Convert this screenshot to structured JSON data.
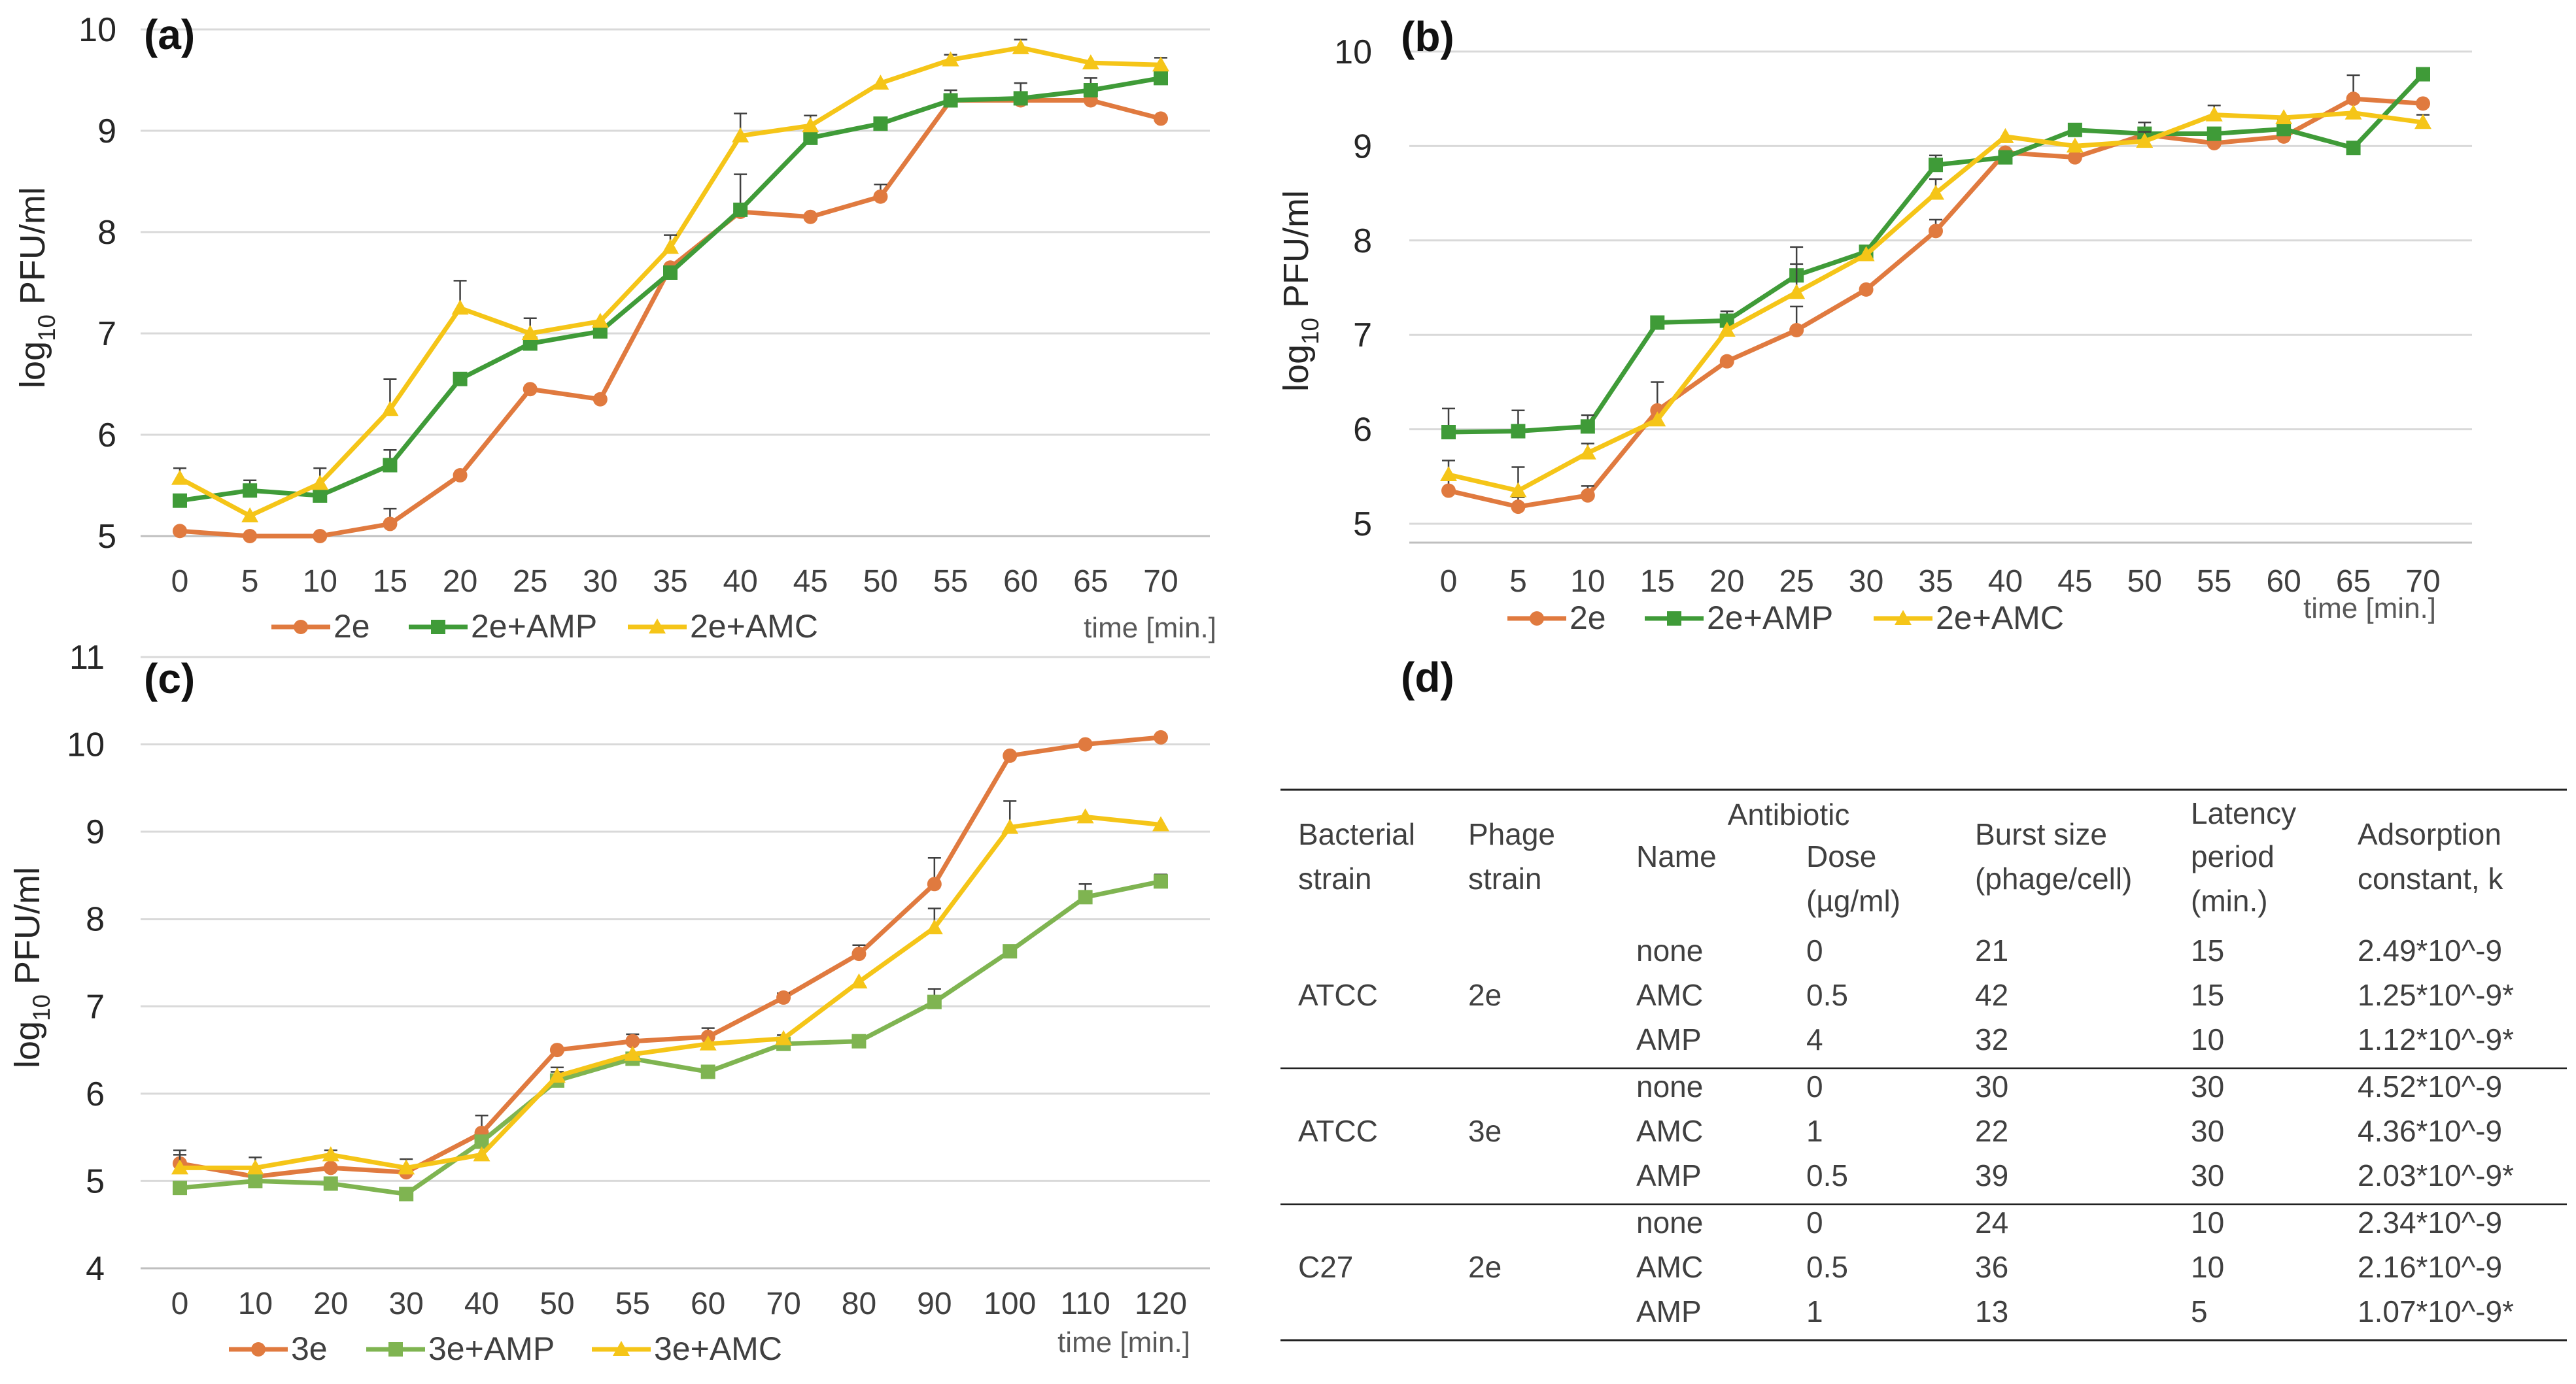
{
  "colors": {
    "s2e": "#E07A3F",
    "s2eAMP": "#3F9B38",
    "s2eAMC": "#F5C518",
    "s3e": "#E07A3F",
    "s3eAMP": "#7FB451",
    "s3eAMC": "#F5C518",
    "grid": "#D9D9D9",
    "axis": "#595959",
    "text": "#404040"
  },
  "chart_data": [
    {
      "id": "a",
      "type": "line",
      "panel_label": "(a)",
      "ylabel": "log10 PFU/ml",
      "xlabel": "time [min.]",
      "ylim": [
        5,
        10
      ],
      "yticks": [
        5,
        6,
        7,
        8,
        9,
        10
      ],
      "categories": [
        "0",
        "5",
        "10",
        "15",
        "20",
        "25",
        "30",
        "35",
        "40",
        "45",
        "50",
        "55",
        "60",
        "65",
        "70"
      ],
      "grid": true,
      "legend": "bottom",
      "series": [
        {
          "name": "2e",
          "marker": "circle",
          "color_key": "s2e",
          "values": [
            5.05,
            5.0,
            5.0,
            5.12,
            5.6,
            6.45,
            6.35,
            7.65,
            8.2,
            8.15,
            8.35,
            9.3,
            9.3,
            9.3,
            9.12
          ],
          "errors": [
            0,
            0,
            0,
            0.15,
            0,
            0,
            0,
            0,
            0,
            0,
            0.12,
            0.1,
            0,
            0,
            0
          ]
        },
        {
          "name": "2e+AMP",
          "marker": "square",
          "color_key": "s2eAMP",
          "values": [
            5.35,
            5.45,
            5.4,
            5.7,
            6.55,
            6.9,
            7.02,
            7.6,
            8.22,
            8.93,
            9.07,
            9.3,
            9.32,
            9.4,
            9.52
          ],
          "errors": [
            0,
            0.1,
            0,
            0.15,
            0,
            0,
            0,
            0,
            0.35,
            0,
            0,
            0,
            0.15,
            0.12,
            0.08
          ]
        },
        {
          "name": "2e+AMC",
          "marker": "triangle",
          "color_key": "s2eAMC",
          "values": [
            5.57,
            5.2,
            5.52,
            6.25,
            7.25,
            7.0,
            7.12,
            7.85,
            8.95,
            9.05,
            9.47,
            9.7,
            9.82,
            9.67,
            9.65
          ],
          "errors": [
            0.1,
            0,
            0.15,
            0.3,
            0.27,
            0.15,
            0,
            0.12,
            0.22,
            0.1,
            0,
            0.05,
            0.08,
            0,
            0.07
          ]
        }
      ]
    },
    {
      "id": "b",
      "type": "line",
      "panel_label": "(b)",
      "ylabel": "log10 PFU/ml",
      "xlabel": "time [min.]",
      "ylim": [
        4.8,
        10.2
      ],
      "yticks": [
        5,
        6,
        7,
        8,
        9,
        10
      ],
      "categories": [
        "0",
        "5",
        "10",
        "15",
        "20",
        "25",
        "30",
        "35",
        "40",
        "45",
        "50",
        "55",
        "60",
        "65",
        "70"
      ],
      "grid": true,
      "legend": "bottom",
      "series": [
        {
          "name": "2e",
          "marker": "circle",
          "color_key": "s2e",
          "values": [
            5.35,
            5.18,
            5.3,
            6.2,
            6.72,
            7.05,
            7.48,
            8.1,
            8.93,
            8.88,
            9.12,
            9.03,
            9.1,
            9.5,
            9.45
          ],
          "errors": [
            0.12,
            0.1,
            0.1,
            0.3,
            0,
            0.25,
            0,
            0.12,
            0,
            0,
            0,
            0.1,
            0.1,
            0.25,
            0
          ]
        },
        {
          "name": "2e+AMP",
          "marker": "square",
          "color_key": "s2eAMP",
          "values": [
            5.97,
            5.98,
            6.03,
            7.13,
            7.15,
            7.63,
            7.88,
            8.8,
            8.88,
            9.17,
            9.13,
            9.13,
            9.18,
            8.98,
            9.76
          ],
          "errors": [
            0.25,
            0.22,
            0.12,
            0,
            0.1,
            0.3,
            0,
            0.1,
            0,
            0,
            0.12,
            0,
            0.1,
            0,
            0
          ]
        },
        {
          "name": "2e+AMC",
          "marker": "triangle",
          "color_key": "s2eAMC",
          "values": [
            5.52,
            5.35,
            5.75,
            6.1,
            7.05,
            7.45,
            7.85,
            8.5,
            9.1,
            9.0,
            9.05,
            9.33,
            9.3,
            9.35,
            9.25
          ],
          "errors": [
            0.15,
            0.25,
            0.1,
            0,
            0,
            0.3,
            0,
            0.15,
            0,
            0,
            0.1,
            0.1,
            0,
            0,
            0.08
          ]
        }
      ]
    },
    {
      "id": "c",
      "type": "line",
      "panel_label": "(c)",
      "ylabel": "log10 PFU/ml",
      "xlabel": "time [min.]",
      "ylim": [
        4,
        11
      ],
      "yticks": [
        4,
        5,
        6,
        7,
        8,
        9,
        10,
        11
      ],
      "categories": [
        "0",
        "10",
        "20",
        "30",
        "40",
        "50",
        "55",
        "60",
        "70",
        "80",
        "90",
        "100",
        "110",
        "120"
      ],
      "grid": true,
      "legend": "bottom",
      "series": [
        {
          "name": "3e",
          "marker": "circle",
          "color_key": "s3e",
          "values": [
            5.2,
            5.05,
            5.15,
            5.1,
            5.55,
            6.5,
            6.6,
            6.65,
            7.1,
            7.6,
            8.4,
            9.87,
            10.0,
            10.08
          ],
          "errors": [
            0.15,
            0,
            0,
            0,
            0.2,
            0,
            0.08,
            0.1,
            0.05,
            0.1,
            0.3,
            0,
            0,
            0
          ]
        },
        {
          "name": "3e+AMP",
          "marker": "square",
          "color_key": "s3eAMP",
          "values": [
            4.92,
            5.0,
            4.97,
            4.85,
            5.45,
            6.15,
            6.4,
            6.25,
            6.57,
            6.6,
            7.05,
            7.63,
            8.25,
            8.43
          ],
          "errors": [
            0,
            0,
            0,
            0,
            0,
            0.1,
            0,
            0,
            0.1,
            0.05,
            0.15,
            0,
            0.15,
            0.08
          ]
        },
        {
          "name": "3e+AMC",
          "marker": "triangle",
          "color_key": "s3eAMC",
          "values": [
            5.15,
            5.15,
            5.3,
            5.15,
            5.3,
            6.2,
            6.45,
            6.57,
            6.63,
            7.28,
            7.9,
            9.05,
            9.17,
            9.08
          ],
          "errors": [
            0.15,
            0.12,
            0.05,
            0.1,
            0,
            0.1,
            0,
            0,
            0,
            0,
            0.22,
            0.3,
            0,
            0
          ]
        }
      ]
    }
  ],
  "table": {
    "panel_label": "(d)",
    "headers": {
      "bacterial_strain": [
        "Bacterial",
        "strain"
      ],
      "phage_strain": [
        "Phage",
        "strain"
      ],
      "antibiotic": "Antibiotic",
      "name": "Name",
      "dose": [
        "Dose",
        "(µg/ml)"
      ],
      "burst": [
        "Burst size",
        "(phage/cell)"
      ],
      "latency": [
        "Latency",
        "period",
        "(min.)"
      ],
      "adsorption": [
        "Adsorption",
        "constant, k"
      ]
    },
    "groups": [
      {
        "bacterial": "ATCC",
        "phage": "2e",
        "rows": [
          {
            "name": "none",
            "dose": "0",
            "burst": "21",
            "latency": "15",
            "k": "2.49*10^-9"
          },
          {
            "name": "AMC",
            "dose": "0.5",
            "burst": "42",
            "latency": "15",
            "k": "1.25*10^-9*"
          },
          {
            "name": "AMP",
            "dose": "4",
            "burst": "32",
            "latency": "10",
            "k": "1.12*10^-9*"
          }
        ]
      },
      {
        "bacterial": "ATCC",
        "phage": "3e",
        "rows": [
          {
            "name": "none",
            "dose": "0",
            "burst": "30",
            "latency": "30",
            "k": "4.52*10^-9"
          },
          {
            "name": "AMC",
            "dose": "1",
            "burst": "22",
            "latency": "30",
            "k": "4.36*10^-9"
          },
          {
            "name": "AMP",
            "dose": "0.5",
            "burst": "39",
            "latency": "30",
            "k": "2.03*10^-9*"
          }
        ]
      },
      {
        "bacterial": "C27",
        "phage": "2e",
        "rows": [
          {
            "name": "none",
            "dose": "0",
            "burst": "24",
            "latency": "10",
            "k": "2.34*10^-9"
          },
          {
            "name": "AMC",
            "dose": "0.5",
            "burst": "36",
            "latency": "10",
            "k": "2.16*10^-9"
          },
          {
            "name": "AMP",
            "dose": "1",
            "burst": "13",
            "latency": "5",
            "k": "1.07*10^-9*"
          }
        ]
      }
    ]
  }
}
